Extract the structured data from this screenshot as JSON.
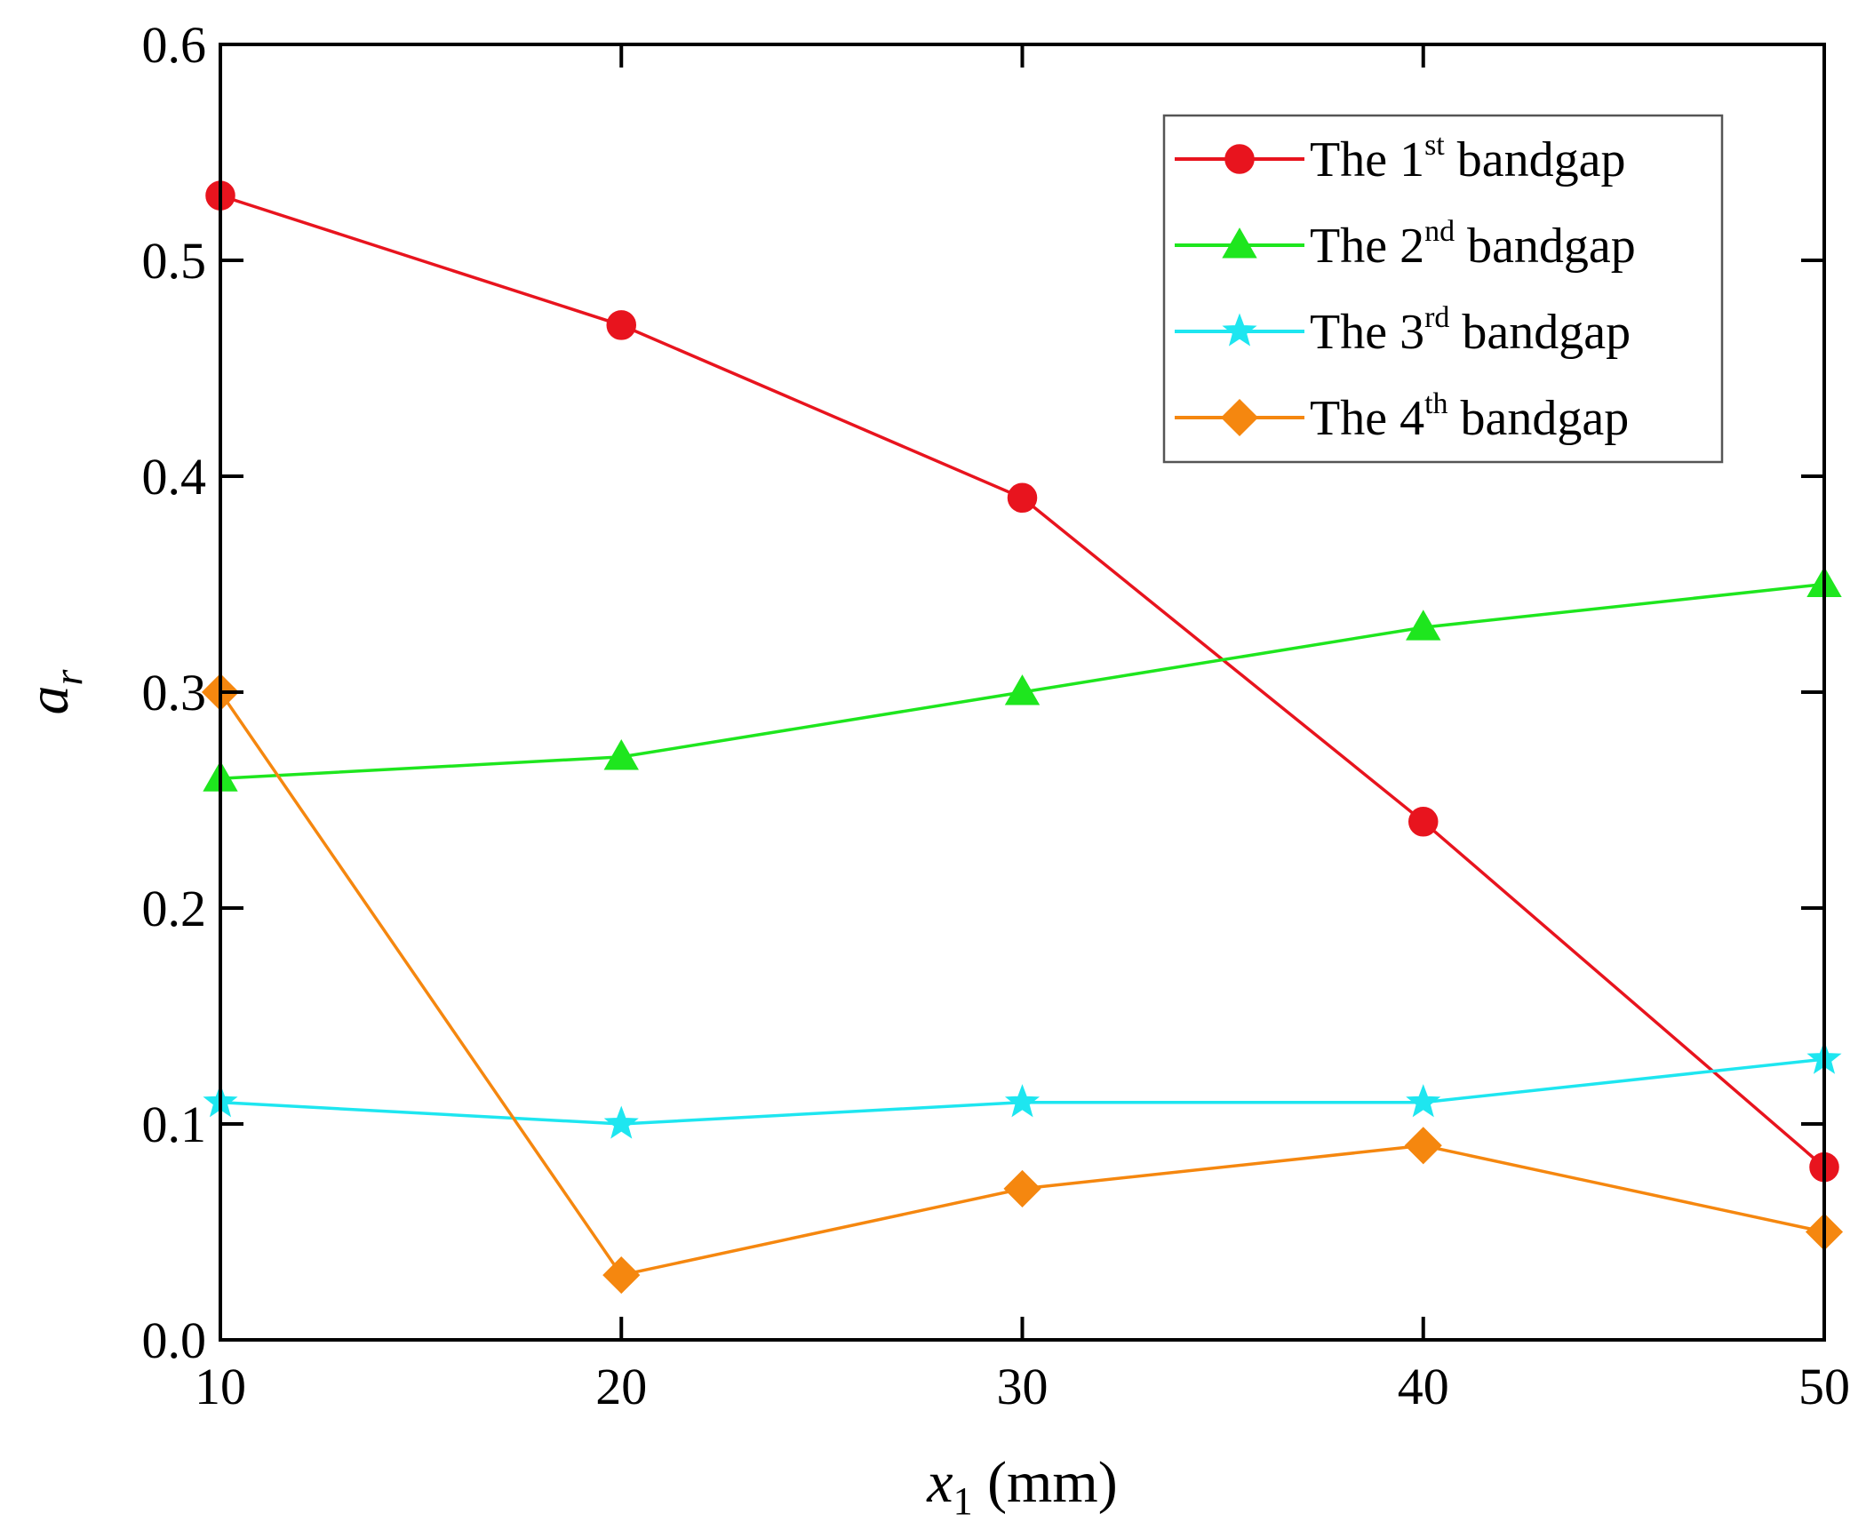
{
  "chart_data": {
    "type": "line",
    "title": "",
    "xlabel": {
      "var": "x",
      "sub": "1",
      "unit": " (mm)"
    },
    "ylabel": {
      "var": "a",
      "sub": "r"
    },
    "xlim": [
      10,
      50
    ],
    "ylim": [
      0.0,
      0.6
    ],
    "xticks": [
      10,
      20,
      30,
      40,
      50
    ],
    "xtick_labels": [
      "10",
      "20",
      "30",
      "40",
      "50"
    ],
    "yticks": [
      0.0,
      0.1,
      0.2,
      0.3,
      0.4,
      0.5,
      0.6
    ],
    "ytick_labels": [
      "0.0",
      "0.1",
      "0.2",
      "0.3",
      "0.4",
      "0.5",
      "0.6"
    ],
    "grid": false,
    "legend_position": "top-right",
    "x": [
      10,
      20,
      30,
      40,
      50
    ],
    "series": [
      {
        "name": "The 1st bandgap",
        "prefix": "The 1",
        "sup": "st",
        "suffix": " bandgap",
        "color": "#e8141e",
        "marker": "circle",
        "values": [
          0.53,
          0.47,
          0.39,
          0.24,
          0.08
        ]
      },
      {
        "name": "The 2nd bandgap",
        "prefix": "The 2",
        "sup": "nd",
        "suffix": " bandgap",
        "color": "#1ee61e",
        "marker": "triangle",
        "values": [
          0.26,
          0.27,
          0.3,
          0.33,
          0.35
        ]
      },
      {
        "name": "The 3rd bandgap",
        "prefix": "The 3",
        "sup": "rd",
        "suffix": " bandgap",
        "color": "#1ee6f0",
        "marker": "star",
        "values": [
          0.11,
          0.1,
          0.11,
          0.11,
          0.13
        ]
      },
      {
        "name": "The 4th bandgap",
        "prefix": "The 4",
        "sup": "th",
        "suffix": " bandgap",
        "color": "#f5870f",
        "marker": "diamond",
        "values": [
          0.3,
          0.03,
          0.07,
          0.09,
          0.05
        ]
      }
    ]
  }
}
